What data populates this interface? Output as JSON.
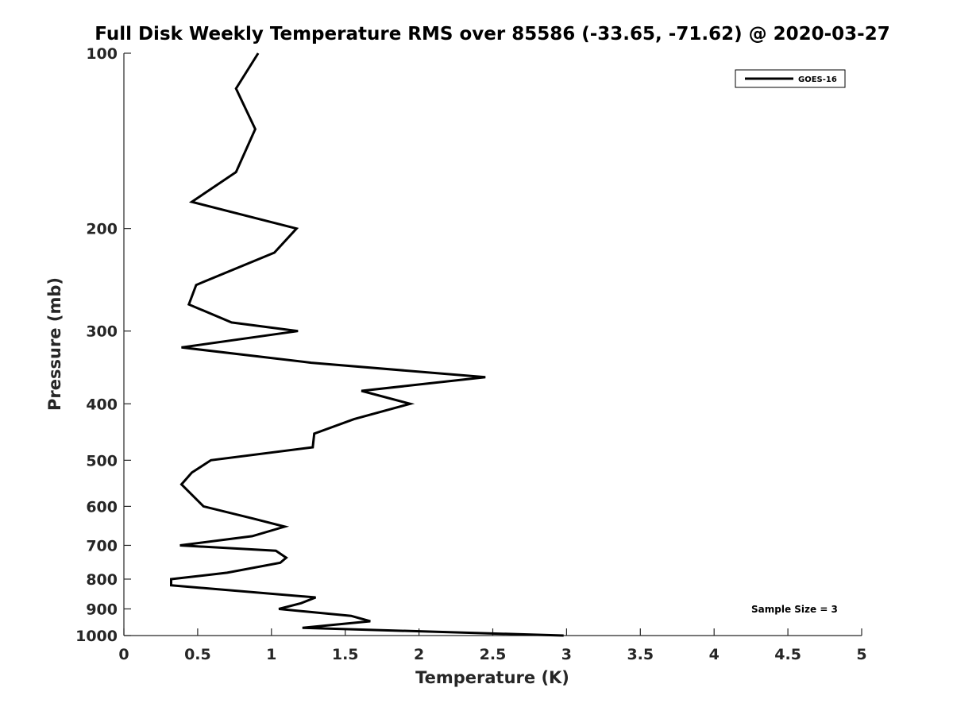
{
  "chart_data": {
    "type": "line",
    "title": "Full Disk Weekly Temperature RMS over 85586 (-33.65, -71.62) @ 2020-03-27",
    "xlabel": "Temperature (K)",
    "ylabel": "Pressure (mb)",
    "xlim": [
      0,
      5
    ],
    "ylim": [
      100,
      1000
    ],
    "y_scale": "log",
    "y_reversed": true,
    "x_ticks": [
      "0",
      "0.5",
      "1",
      "1.5",
      "2",
      "2.5",
      "3",
      "3.5",
      "4",
      "4.5",
      "5"
    ],
    "y_ticks": [
      "100",
      "200",
      "300",
      "400",
      "500",
      "600",
      "700",
      "800",
      "900",
      "1000"
    ],
    "grid": false,
    "legend_position": "top-right",
    "series": [
      {
        "name": "GOES-16",
        "color": "#000000",
        "x": [
          0.91,
          0.76,
          0.89,
          0.76,
          0.46,
          1.17,
          1.02,
          0.49,
          0.44,
          0.73,
          1.18,
          0.39,
          1.27,
          2.45,
          1.61,
          1.94,
          1.56,
          1.29,
          1.28,
          0.59,
          0.46,
          0.39,
          0.54,
          0.88,
          1.09,
          0.87,
          0.38,
          1.03,
          1.1,
          1.06,
          0.7,
          0.32,
          0.32,
          1.3,
          1.2,
          1.05,
          1.54,
          1.67,
          1.21,
          2.98
        ],
        "y": [
          100,
          115,
          135,
          160,
          180,
          200,
          220,
          250,
          270,
          290,
          300,
          320,
          340,
          360,
          380,
          400,
          425,
          450,
          475,
          500,
          525,
          550,
          600,
          630,
          650,
          675,
          700,
          715,
          735,
          750,
          780,
          800,
          820,
          860,
          880,
          900,
          925,
          945,
          970,
          1000
        ]
      }
    ],
    "annotation": "Sample Size = 3"
  }
}
